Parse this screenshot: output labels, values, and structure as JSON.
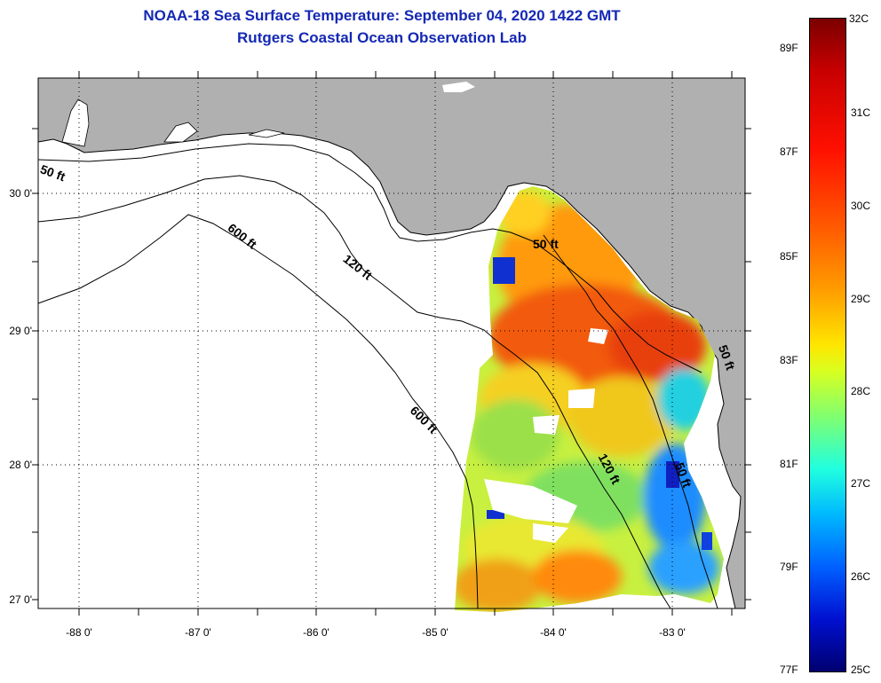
{
  "title": {
    "line1": "NOAA-18 Sea Surface Temperature:  September 04, 2020 1422 GMT",
    "line2": "Rutgers Coastal Ocean Observation Lab"
  },
  "map": {
    "latitudes": [
      "30 0'",
      "29 0'",
      "28 0'",
      "27 0'"
    ],
    "longitudes": [
      "-88 0'",
      "-87 0'",
      "-86 0'",
      "-85 0'",
      "-84 0'",
      "-83 0'"
    ],
    "contours": [
      {
        "label": "50 ft"
      },
      {
        "label": "600 ft"
      },
      {
        "label": "120 ft"
      },
      {
        "label": "50 ft"
      },
      {
        "label": "600 ft"
      },
      {
        "label": "120 ft"
      },
      {
        "label": "50 ft"
      },
      {
        "label": "50 ft"
      }
    ],
    "colors": {
      "land": "#b0b0b0",
      "water": "#ffffff",
      "coastline": "#000000"
    }
  },
  "colorbar": {
    "celsius": [
      "32C",
      "31C",
      "30C",
      "29C",
      "28C",
      "27C",
      "26C",
      "25C"
    ],
    "fahrenheit": [
      "89F",
      "87F",
      "85F",
      "83F",
      "81F",
      "79F",
      "77F"
    ]
  }
}
